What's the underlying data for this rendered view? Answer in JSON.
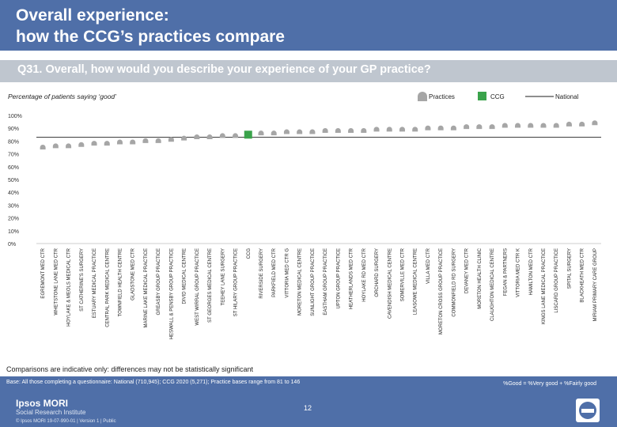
{
  "header": {
    "title_line1": "Overall experience:",
    "title_line2": "how the CCG’s practices compare"
  },
  "question": "Q31. Overall, how would you describe your experience of your GP practice?",
  "subtitle": "Percentage of patients saying ‘good’",
  "legend": {
    "practices": "Practices",
    "ccg": "CCG",
    "national": "National"
  },
  "colors": {
    "practices": "#a6a6a6",
    "ccg": "#3aa34b",
    "national": "#4a4a4a",
    "header": "#4f6fa8",
    "question_bar": "#bfc6cf"
  },
  "chart_data": {
    "type": "scatter",
    "ylim": [
      0,
      100
    ],
    "yticks": [
      "0%",
      "10%",
      "20%",
      "30%",
      "40%",
      "50%",
      "60%",
      "70%",
      "80%",
      "90%",
      "100%"
    ],
    "national": 83,
    "highlight": "CCG",
    "categories": [
      "EGREMONT MED CTR",
      "WHETSTONE LANE MED CTR",
      "HOYLAKE & MEOLS MEDICAL CTR",
      "ST CATHERINE'S SURGERY",
      "ESTUARY MEDICAL PRACTICE",
      "CENTRAL PARK MEDICAL CENTRE",
      "TOWNFIELD HEALTH CENTRE",
      "GLADSTONE MED CTR",
      "MARINE LAKE MEDICAL PRACTICE",
      "GREASBY GROUP PRACTICE",
      "HESWALL & PENSBY GROUP PRACTICE",
      "DIVID MEDICAL CENTRE",
      "WEST WIRRAL GROUP PRACTICE",
      "ST GEORGES MEDICAL CENTRE",
      "TEEHEY LANE SURGERY",
      "ST HILARY GROUP PRACTICE",
      "CCG",
      "RIVERSIDE SURGERY",
      "PARKFIELD MED CTR",
      "VITTORIA MED CTR G",
      "MORETON MEDICAL CENTRE",
      "SUNLIGHT GROUP PRACTICE",
      "EASTHAM GROUP PRACTICE",
      "UPTON GROUP PRACTICE",
      "HEATHERLANDS MED CTR",
      "HOYLAKE RD MED CTR",
      "ORCHARD SURGERY",
      "CAVENDISH MEDICAL CENTRE",
      "SOMERVILLE MED CTR",
      "LEASOWE MEDICAL CENTRE",
      "VILLA MED CTR",
      "MORETON CROSS GROUP PRACTICE",
      "COMMONFIELD RD SURGERY",
      "DEVANEY MED CTR",
      "MORETON HEALTH CLINIC",
      "CLAUGHTON MEDICAL CENTRE",
      "FEGAN & PARTNERS",
      "VITTORIA MED CTR K",
      "HAMILTON MED CTR",
      "KINGS LANE MEDICAL PRACTICE",
      "LISCARD GROUP PRACTICE",
      "SPITAL SURGERY",
      "BLACKHEATH MED CTR",
      "MIRIAM PRIMARY CARE GROUP"
    ],
    "values": [
      75,
      76,
      76,
      77,
      78,
      78,
      79,
      79,
      80,
      80,
      81,
      82,
      83,
      83,
      84,
      84,
      85,
      86,
      86,
      87,
      87,
      87,
      88,
      88,
      88,
      88,
      89,
      89,
      89,
      89,
      90,
      90,
      90,
      91,
      91,
      91,
      92,
      92,
      92,
      92,
      92,
      93,
      93,
      94
    ]
  },
  "disclaimer": "Comparisons are indicative only: differences may not be statistically significant",
  "footer": {
    "base": "Base: All those completing a questionnaire: National (710,945); CCG 2020 (5,271); Practice bases range from 81 to 146",
    "formula": "%Good = %Very good + %Fairly good",
    "page_number": "12",
    "logo_line1": "Ipsos MORI",
    "logo_line2": "Social Research Institute",
    "copyright": "© Ipsos MORI     19-07-990-01 | Version 1 | Public"
  }
}
